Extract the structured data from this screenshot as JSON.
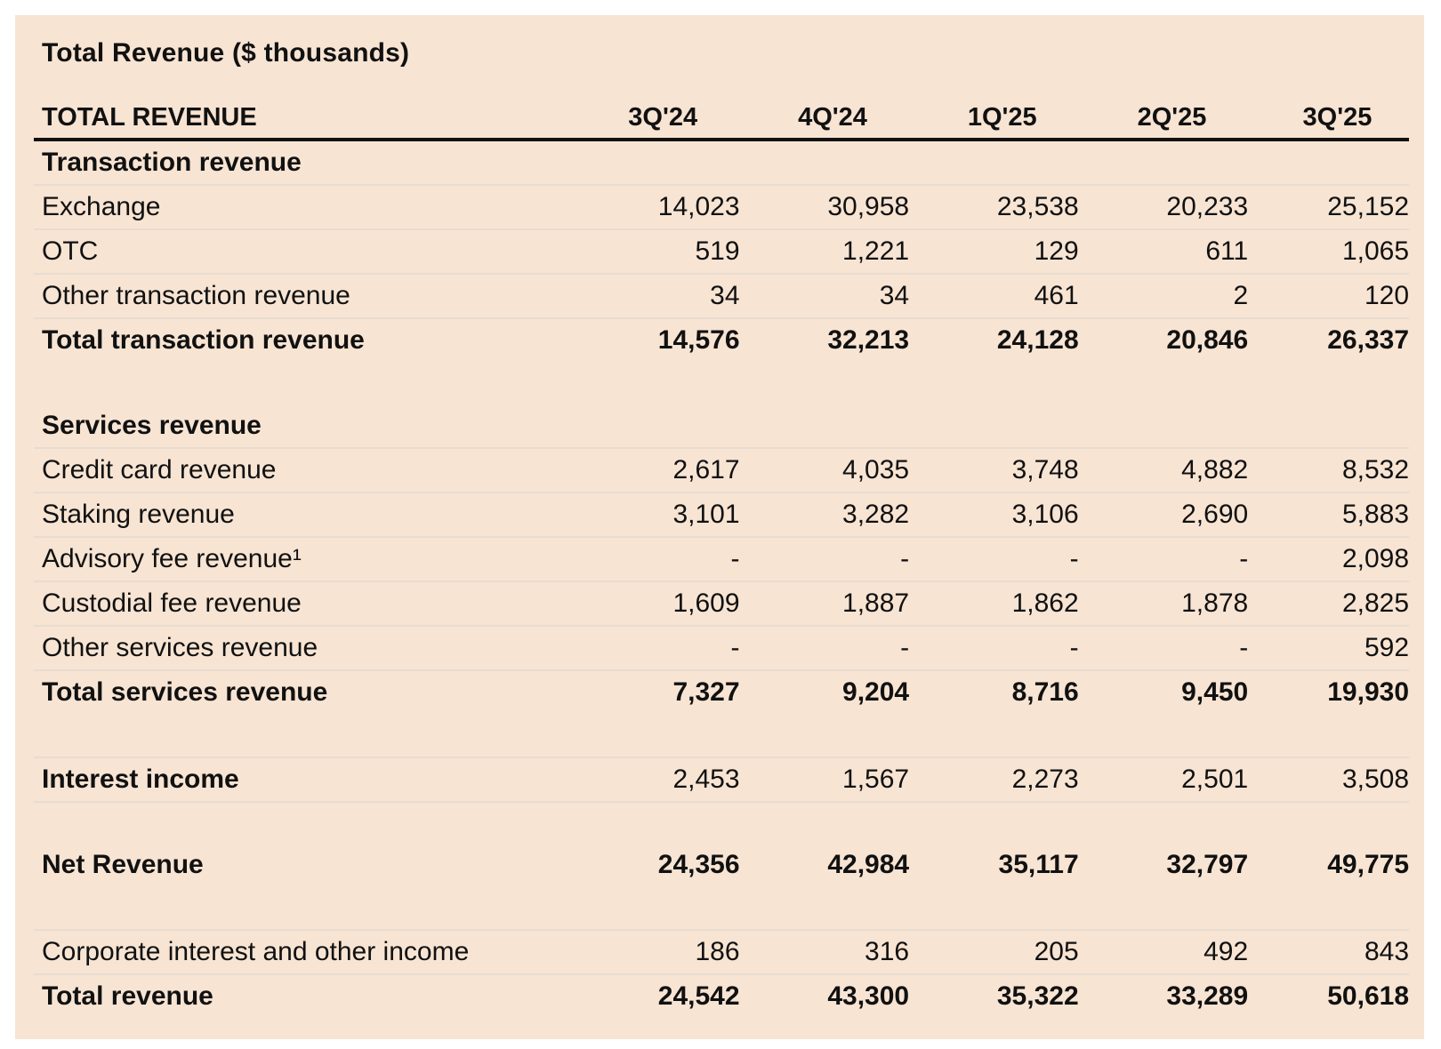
{
  "title": "Total Revenue ($ thousands)",
  "header": {
    "label": "TOTAL REVENUE",
    "periods": [
      "3Q'24",
      "4Q'24",
      "1Q'25",
      "2Q'25",
      "3Q'25"
    ]
  },
  "transaction": {
    "section_label": "Transaction revenue",
    "rows": [
      {
        "label": "Exchange",
        "values": [
          "14,023",
          "30,958",
          "23,538",
          "20,233",
          "25,152"
        ]
      },
      {
        "label": "OTC",
        "values": [
          "519",
          "1,221",
          "129",
          "611",
          "1,065"
        ]
      },
      {
        "label": "Other transaction revenue",
        "values": [
          "34",
          "34",
          "461",
          "2",
          "120"
        ]
      }
    ],
    "total": {
      "label": "Total transaction revenue",
      "values": [
        "14,576",
        "32,213",
        "24,128",
        "20,846",
        "26,337"
      ]
    }
  },
  "services": {
    "section_label": "Services revenue",
    "rows": [
      {
        "label": "Credit card revenue",
        "values": [
          "2,617",
          "4,035",
          "3,748",
          "4,882",
          "8,532"
        ]
      },
      {
        "label": "Staking revenue",
        "values": [
          "3,101",
          "3,282",
          "3,106",
          "2,690",
          "5,883"
        ]
      },
      {
        "label": "Advisory fee revenue¹",
        "values": [
          "-",
          "-",
          "-",
          "-",
          "2,098"
        ]
      },
      {
        "label": "Custodial fee revenue",
        "values": [
          "1,609",
          "1,887",
          "1,862",
          "1,878",
          "2,825"
        ]
      },
      {
        "label": "Other services revenue",
        "values": [
          "-",
          "-",
          "-",
          "-",
          "592"
        ]
      }
    ],
    "total": {
      "label": "Total services revenue",
      "values": [
        "7,327",
        "9,204",
        "8,716",
        "9,450",
        "19,930"
      ]
    }
  },
  "interest": {
    "label": "Interest income",
    "values": [
      "2,453",
      "1,567",
      "2,273",
      "2,501",
      "3,508"
    ]
  },
  "net": {
    "label": "Net Revenue",
    "values": [
      "24,356",
      "42,984",
      "35,117",
      "32,797",
      "49,775"
    ]
  },
  "corporate": {
    "label": "Corporate interest and other income",
    "values": [
      "186",
      "316",
      "205",
      "492",
      "843"
    ]
  },
  "total_revenue": {
    "label": "Total revenue",
    "values": [
      "24,542",
      "43,300",
      "35,322",
      "33,289",
      "50,618"
    ]
  }
}
